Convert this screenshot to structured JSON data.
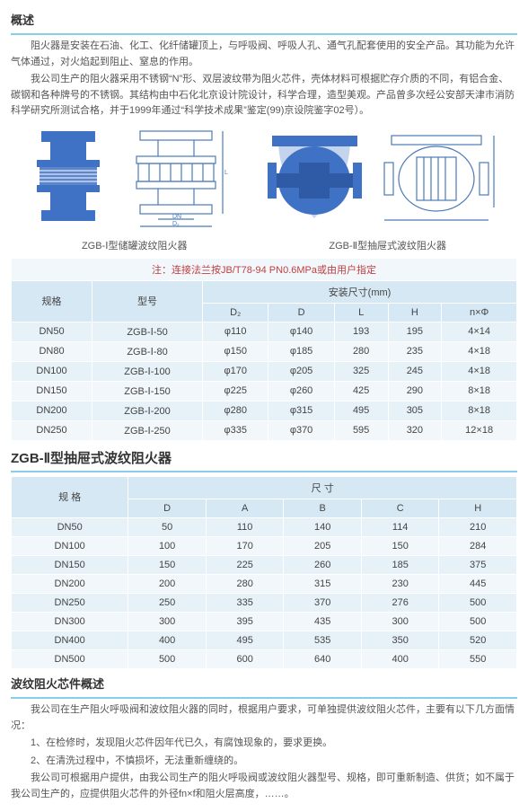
{
  "overview": {
    "heading": "概述",
    "p1": "阻火器是安装在石油、化工、化纤储罐顶上，与呼吸阀、呼吸人孔、通气孔配套使用的安全产品。其功能为允许气体通过，对火焰起到阻止、窒息的作用。",
    "p2": "我公司生产的阻火器采用不锈钢“N”形、双层波纹带为阻火芯件，壳体材料可根据贮存介质的不同，有铝合金、碳钢和各种牌号的不锈钢。其结构由中石化北京设计院设计，科学合理，造型美观。产品曾多次经公安部天津市消防科学研究所测试合格，并于1999年通过“科学技术成果”鉴定(99)京设院鉴字02号）。"
  },
  "drawings": {
    "caption1": "ZGB-Ⅰ型储罐波纹阻火器",
    "caption2": "ZGB-Ⅱ型抽屉式波纹阻火器",
    "body_fill": "#3f72c4",
    "line_color": "#4a7ab8"
  },
  "table1": {
    "note": "注：连接法兰按JB/T78-94 PN0.6MPa或由用户指定",
    "hdr_top": "安装尺寸(mm)",
    "col_spec": "规格",
    "col_model": "型号",
    "cols": [
      "D₂",
      "D",
      "L",
      "H",
      "n×Φ"
    ],
    "rows": [
      [
        "DN50",
        "ZGB-Ⅰ-50",
        "φ110",
        "φ140",
        "193",
        "195",
        "4×14"
      ],
      [
        "DN80",
        "ZGB-Ⅰ-80",
        "φ150",
        "φ185",
        "280",
        "235",
        "4×18"
      ],
      [
        "DN100",
        "ZGB-Ⅰ-100",
        "φ170",
        "φ205",
        "325",
        "245",
        "4×18"
      ],
      [
        "DN150",
        "ZGB-Ⅰ-150",
        "φ225",
        "φ260",
        "425",
        "290",
        "8×18"
      ],
      [
        "DN200",
        "ZGB-Ⅰ-200",
        "φ280",
        "φ315",
        "495",
        "305",
        "8×18"
      ],
      [
        "DN250",
        "ZGB-Ⅰ-250",
        "φ335",
        "φ370",
        "595",
        "320",
        "12×18"
      ]
    ],
    "hdr_bg": "#d6e8f4",
    "row_a_bg": "#e6f1f8",
    "row_b_bg": "#f2f7fb"
  },
  "section2_title": "ZGB-Ⅱ型抽屉式波纹阻火器",
  "table2": {
    "col_spec": "规   格",
    "hdr_top": "尺   寸",
    "cols": [
      "D",
      "A",
      "B",
      "C",
      "H"
    ],
    "rows": [
      [
        "DN50",
        "50",
        "110",
        "140",
        "114",
        "210"
      ],
      [
        "DN100",
        "100",
        "170",
        "205",
        "150",
        "284"
      ],
      [
        "DN150",
        "150",
        "225",
        "260",
        "185",
        "375"
      ],
      [
        "DN200",
        "200",
        "280",
        "315",
        "230",
        "445"
      ],
      [
        "DN250",
        "250",
        "335",
        "370",
        "276",
        "500"
      ],
      [
        "DN300",
        "300",
        "395",
        "435",
        "300",
        "500"
      ],
      [
        "DN400",
        "400",
        "495",
        "535",
        "350",
        "520"
      ],
      [
        "DN500",
        "500",
        "600",
        "640",
        "400",
        "550"
      ]
    ]
  },
  "core": {
    "heading": "波纹阻火芯件概述",
    "p1": "我公司在生产阻火呼吸阀和波纹阻火器的同时，根据用户要求，可单独提供波纹阻火芯件，主要有以下几方面情况：",
    "p2": "1、在检修时，发现阻火芯件因年代已久，有腐蚀现象的，要求更换。",
    "p3": "2、在清洗过程中，不慎损坏，无法重新缠绕的。",
    "p4": "我公司可根据用户提供，由我公司生产的阻火呼吸阀或波纹阻火器型号、规格，即可重新制造、供货；如不属于我公司生产的，应提供阻火芯件的外径fn×f和阻火层高度，……。"
  }
}
